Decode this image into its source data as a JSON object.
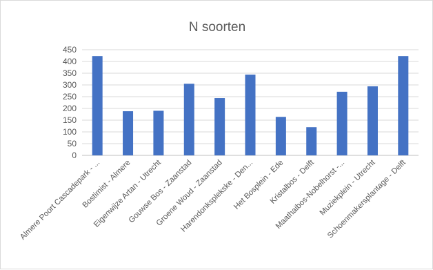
{
  "chart_data": {
    "type": "bar",
    "title": "N soorten",
    "xlabel": "",
    "ylabel": "",
    "ylim": [
      0,
      450
    ],
    "yticks": [
      0,
      50,
      100,
      150,
      200,
      250,
      300,
      350,
      400,
      450
    ],
    "grid": true,
    "legend": "none",
    "bar_color": "#4472c4",
    "categories": [
      "Almere Poort Cascadepark - ...",
      "Bostimist - Almere",
      "Eigenwijze Artan - Utrecht",
      "Gouwse Bos - Zaanstad",
      "Groene Woud - Zaanstad",
      "Harendonksplekske - Den...",
      "Het Bosplein - Ede",
      "Kristalbos - Delft",
      "Maathaibos-Nobelhorst -...",
      "Muziekplein - Utrecht",
      "Schoenmakersplantage - Delft"
    ],
    "values": [
      423,
      188,
      190,
      305,
      244,
      344,
      164,
      120,
      271,
      294,
      423
    ]
  }
}
